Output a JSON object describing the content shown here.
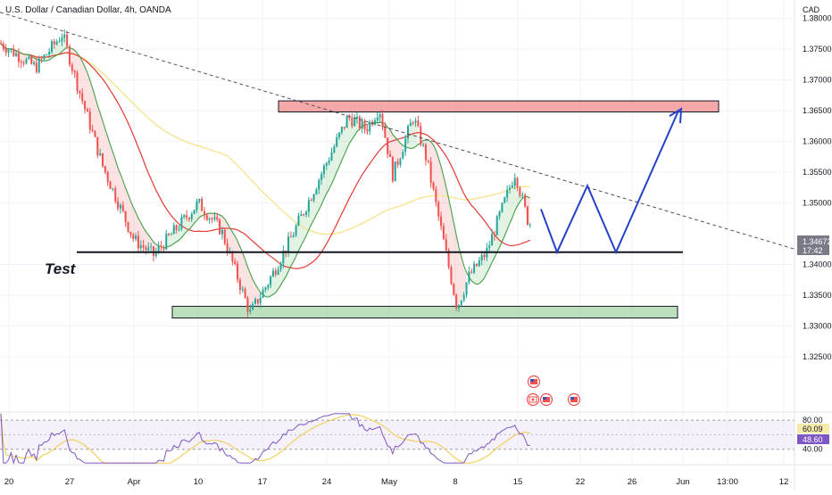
{
  "header": {
    "symbol_title": "U.S. Dollar / Canadian Dollar, 4h, OANDA",
    "currency_label": "CAD"
  },
  "chart_data": {
    "type": "candlestick",
    "symbol": "U.S. Dollar / Canadian Dollar",
    "timeframe": "4h",
    "source": "OANDA",
    "ylim": [
      1.316,
      1.383
    ],
    "y_ticks": [
      "1.38000",
      "1.37500",
      "1.37000",
      "1.36500",
      "1.36000",
      "1.35500",
      "1.35000",
      "1.34000",
      "1.33500",
      "1.33000",
      "1.32500"
    ],
    "x_ticks": [
      "20",
      "27",
      "Apr",
      "10",
      "17",
      "24",
      "May",
      "8",
      "15",
      "22",
      "26",
      "Jun",
      "13:00",
      "12"
    ],
    "last_price": {
      "value": "1.34672",
      "countdown": "17:42",
      "color": "#787b86"
    },
    "ohlc_anchors": [
      {
        "x": "Mar 20",
        "price": 1.376
      },
      {
        "x": "Mar 23",
        "price": 1.372
      },
      {
        "x": "Mar 27",
        "price": 1.3775
      },
      {
        "x": "Mar 28",
        "price": 1.37
      },
      {
        "x": "Mar 31",
        "price": 1.356
      },
      {
        "x": "Apr 3",
        "price": 1.344
      },
      {
        "x": "Apr 6",
        "price": 1.3415
      },
      {
        "x": "Apr 10",
        "price": 1.35
      },
      {
        "x": "Apr 12",
        "price": 1.3455
      },
      {
        "x": "Apr 14",
        "price": 1.332
      },
      {
        "x": "Apr 17",
        "price": 1.337
      },
      {
        "x": "Apr 20",
        "price": 1.344
      },
      {
        "x": "Apr 24",
        "price": 1.364
      },
      {
        "x": "Apr 27",
        "price": 1.362
      },
      {
        "x": "Apr 28",
        "price": 1.3655
      },
      {
        "x": "May 2",
        "price": 1.3545
      },
      {
        "x": "May 3",
        "price": 1.364
      },
      {
        "x": "May 5",
        "price": 1.357
      },
      {
        "x": "May 8",
        "price": 1.333
      },
      {
        "x": "May 9",
        "price": 1.338
      },
      {
        "x": "May 12",
        "price": 1.342
      },
      {
        "x": "May 15",
        "price": 1.355
      },
      {
        "x": "May 16",
        "price": 1.3467
      }
    ],
    "zones": [
      {
        "name": "resistance",
        "from": 1.3648,
        "to": 1.3666,
        "color": "#f28b8b"
      },
      {
        "name": "support",
        "from": 1.3313,
        "to": 1.3332,
        "color": "#a5d6a7"
      }
    ],
    "levels": [
      {
        "label": "Test",
        "price": 1.342,
        "color": "#131722"
      }
    ],
    "trendline": {
      "style": "dashed",
      "from_price": 1.381,
      "to_price": 1.3425
    },
    "projection": {
      "color": "#2540c9",
      "prices": [
        1.349,
        1.342,
        1.3528,
        1.342,
        1.365
      ]
    },
    "moving_averages": [
      {
        "name": "fast",
        "color": "#43a047"
      },
      {
        "name": "medium",
        "color": "#e53935"
      },
      {
        "name": "slow",
        "color": "#f5e79e"
      }
    ],
    "rsi": {
      "ylim": [
        20,
        90
      ],
      "y_ticks": [
        "80.00",
        "40.00"
      ],
      "band": [
        40,
        80
      ],
      "rsi_value": "48.60",
      "ma_value": "60.09",
      "rsi_color": "#7e57c2",
      "ma_color": "#f0d060"
    },
    "events": [
      {
        "flag": "us"
      },
      {
        "flag": "ca"
      },
      {
        "flag": "us"
      },
      {
        "flag": "us"
      }
    ],
    "colors": {
      "up": "#26a69a",
      "down": "#ef5350",
      "grid": "#f0f3fa",
      "text": "#131722",
      "tag_fill": "#787b86"
    }
  }
}
